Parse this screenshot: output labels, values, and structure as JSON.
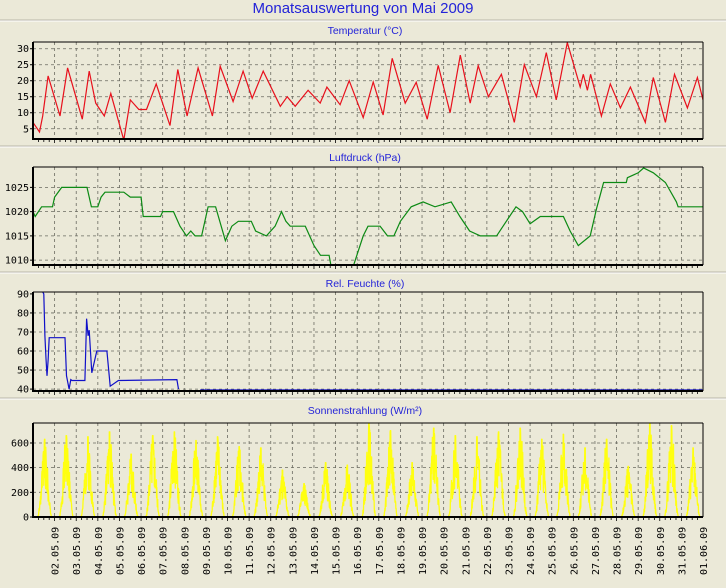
{
  "title": "Monatsauswertung von Mai 2009",
  "chart_data": [
    {
      "type": "line",
      "title": "Temperatur (°C)",
      "color": "#e8101c",
      "ylim": [
        1.8,
        32.1
      ],
      "yticks": [
        5,
        10,
        15,
        20,
        25,
        30
      ],
      "xlabel_unit": "days since 01.05.09",
      "points": [
        [
          0,
          7
        ],
        [
          0.3,
          4
        ],
        [
          0.45,
          9
        ],
        [
          0.7,
          21.5
        ],
        [
          1.25,
          9
        ],
        [
          1.6,
          24
        ],
        [
          2.28,
          8
        ],
        [
          2.6,
          23
        ],
        [
          2.9,
          13
        ],
        [
          3.3,
          9
        ],
        [
          3.6,
          16
        ],
        [
          4.2,
          1.5
        ],
        [
          4.5,
          14
        ],
        [
          4.9,
          11
        ],
        [
          5.25,
          11
        ],
        [
          5.7,
          19
        ],
        [
          6.34,
          6
        ],
        [
          6.7,
          23.5
        ],
        [
          7.13,
          9
        ],
        [
          7.64,
          24
        ],
        [
          8.3,
          9
        ],
        [
          8.66,
          24.5
        ],
        [
          9.26,
          13.5
        ],
        [
          9.72,
          23
        ],
        [
          10.14,
          14.5
        ],
        [
          10.65,
          23
        ],
        [
          11.44,
          12
        ],
        [
          11.76,
          15
        ],
        [
          12.13,
          12
        ],
        [
          12.73,
          17
        ],
        [
          13.29,
          13
        ],
        [
          13.6,
          18
        ],
        [
          14.21,
          12.5
        ],
        [
          14.63,
          20
        ],
        [
          15.28,
          8.5
        ],
        [
          15.74,
          19.6
        ],
        [
          16.2,
          9.3
        ],
        [
          16.62,
          27
        ],
        [
          17.22,
          13
        ],
        [
          17.73,
          19.5
        ],
        [
          18.24,
          8
        ],
        [
          18.75,
          24.8
        ],
        [
          19.3,
          10
        ],
        [
          19.77,
          28
        ],
        [
          20.23,
          13
        ],
        [
          20.6,
          24.7
        ],
        [
          21.07,
          15
        ],
        [
          21.67,
          22
        ],
        [
          22.27,
          7
        ],
        [
          22.73,
          25
        ],
        [
          23.29,
          15
        ],
        [
          23.75,
          28.8
        ],
        [
          24.21,
          14
        ],
        [
          24.72,
          31.9
        ],
        [
          25.32,
          18
        ],
        [
          25.46,
          22
        ],
        [
          25.65,
          17
        ],
        [
          25.8,
          22
        ],
        [
          26.3,
          9
        ],
        [
          26.71,
          19
        ],
        [
          27.18,
          11.5
        ],
        [
          27.64,
          18
        ],
        [
          28.33,
          7
        ],
        [
          28.7,
          21
        ],
        [
          29.26,
          7
        ],
        [
          29.68,
          22
        ],
        [
          30.28,
          11.5
        ],
        [
          30.74,
          21
        ],
        [
          31,
          14
        ]
      ]
    },
    {
      "type": "line",
      "title": "Luftdruck (hPa)",
      "color": "#0c8a14",
      "ylim": [
        1009,
        1029.2
      ],
      "yticks": [
        1010,
        1015,
        1020,
        1025
      ],
      "points": [
        [
          0,
          1020
        ],
        [
          0.1,
          1019
        ],
        [
          0.4,
          1021
        ],
        [
          0.9,
          1021
        ],
        [
          1.0,
          1023
        ],
        [
          1.33,
          1025
        ],
        [
          2.5,
          1025
        ],
        [
          2.7,
          1021
        ],
        [
          3.0,
          1021
        ],
        [
          3.15,
          1023
        ],
        [
          3.33,
          1024
        ],
        [
          4.2,
          1024
        ],
        [
          4.5,
          1023
        ],
        [
          5.0,
          1023
        ],
        [
          5.1,
          1019
        ],
        [
          5.9,
          1019
        ],
        [
          6.0,
          1020
        ],
        [
          6.5,
          1020
        ],
        [
          6.8,
          1017
        ],
        [
          7.1,
          1015
        ],
        [
          7.3,
          1016
        ],
        [
          7.5,
          1015
        ],
        [
          7.8,
          1015
        ],
        [
          8.1,
          1021
        ],
        [
          8.45,
          1021
        ],
        [
          8.9,
          1014
        ],
        [
          9.2,
          1017
        ],
        [
          9.5,
          1018
        ],
        [
          10.1,
          1018
        ],
        [
          10.3,
          1016
        ],
        [
          10.8,
          1015
        ],
        [
          11.2,
          1017
        ],
        [
          11.5,
          1020
        ],
        [
          11.7,
          1018
        ],
        [
          11.9,
          1017
        ],
        [
          12.6,
          1017
        ],
        [
          13.0,
          1013
        ],
        [
          13.3,
          1011
        ],
        [
          13.7,
          1011
        ],
        [
          13.8,
          1008.5
        ],
        [
          14.8,
          1008.5
        ],
        [
          15.28,
          1015
        ],
        [
          15.5,
          1017
        ],
        [
          16.06,
          1017
        ],
        [
          16.4,
          1015
        ],
        [
          16.7,
          1015
        ],
        [
          17.0,
          1018
        ],
        [
          17.5,
          1021
        ],
        [
          18.05,
          1022
        ],
        [
          18.6,
          1021
        ],
        [
          19.35,
          1022
        ],
        [
          19.75,
          1019
        ],
        [
          20.2,
          1016
        ],
        [
          20.7,
          1015
        ],
        [
          21.45,
          1015
        ],
        [
          21.9,
          1018
        ],
        [
          22.35,
          1021
        ],
        [
          22.65,
          1020
        ],
        [
          23.0,
          1017.5
        ],
        [
          23.47,
          1019
        ],
        [
          24.54,
          1019
        ],
        [
          24.85,
          1016
        ],
        [
          25.23,
          1013
        ],
        [
          25.78,
          1015
        ],
        [
          26.07,
          1020.5
        ],
        [
          26.4,
          1026
        ],
        [
          27.45,
          1026
        ],
        [
          27.5,
          1027
        ],
        [
          28.0,
          1028
        ],
        [
          28.25,
          1029
        ],
        [
          28.7,
          1028
        ],
        [
          29.26,
          1026
        ],
        [
          29.77,
          1022
        ],
        [
          29.85,
          1021
        ],
        [
          31,
          1021
        ]
      ]
    },
    {
      "type": "line",
      "title": "Rel. Feuchte (%)",
      "color": "#1010c8",
      "ylim": [
        39,
        91
      ],
      "yticks": [
        40,
        50,
        60,
        70,
        80,
        90
      ],
      "points": [
        [
          0.45,
          91
        ],
        [
          0.5,
          90
        ],
        [
          0.55,
          68
        ],
        [
          0.6,
          56
        ],
        [
          0.65,
          47
        ],
        [
          0.7,
          55
        ],
        [
          0.75,
          67
        ],
        [
          1.48,
          67
        ],
        [
          1.55,
          47
        ],
        [
          1.67,
          40
        ],
        [
          1.75,
          45
        ],
        [
          1.8,
          44.5
        ],
        [
          2.4,
          44.5
        ],
        [
          2.48,
          77
        ],
        [
          2.55,
          68
        ],
        [
          2.6,
          71
        ],
        [
          2.72,
          48.5
        ],
        [
          2.95,
          60
        ],
        [
          3.42,
          60
        ],
        [
          3.57,
          41.5
        ],
        [
          3.95,
          44.5
        ],
        [
          6.66,
          45
        ],
        [
          6.73,
          40
        ],
        [
          6.75,
          null
        ],
        [
          7.73,
          39.5
        ],
        [
          31,
          39.5
        ]
      ]
    },
    {
      "type": "area",
      "title": "Sonnenstrahlung (W/m²)",
      "color": "#ffff10",
      "ylim": [
        0,
        762
      ],
      "yticks": [
        0,
        200,
        400,
        600
      ],
      "daily_peaks": [
        630,
        660,
        650,
        690,
        510,
        660,
        690,
        620,
        650,
        570,
        560,
        380,
        270,
        440,
        420,
        760,
        700,
        440,
        720,
        660,
        650,
        690,
        720,
        630,
        670,
        560,
        630,
        410,
        760,
        740,
        560
      ]
    }
  ],
  "x_labels": [
    "02.05.09",
    "03.05.09",
    "04.05.09",
    "05.05.09",
    "06.05.09",
    "07.05.09",
    "08.05.09",
    "09.05.09",
    "10.05.09",
    "11.05.09",
    "12.05.09",
    "13.05.09",
    "14.05.09",
    "15.05.09",
    "16.05.09",
    "17.05.09",
    "18.05.09",
    "19.05.09",
    "20.05.09",
    "21.05.09",
    "22.05.09",
    "23.05.09",
    "24.05.09",
    "25.05.09",
    "26.05.09",
    "27.05.09",
    "28.05.09",
    "29.05.09",
    "30.05.09",
    "31.05.09",
    "01.06.09"
  ]
}
